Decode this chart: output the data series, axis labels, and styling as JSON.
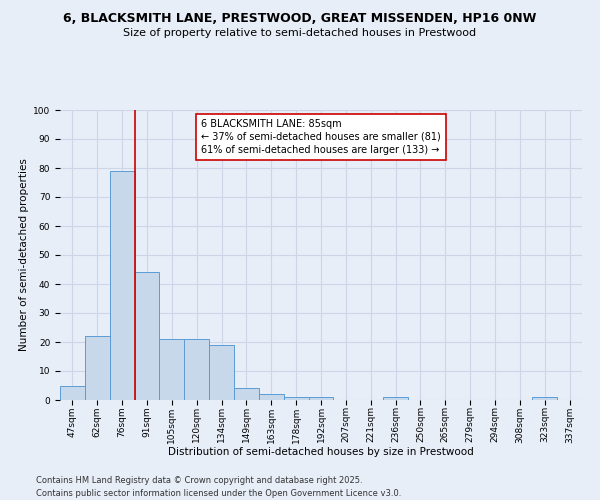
{
  "title": "6, BLACKSMITH LANE, PRESTWOOD, GREAT MISSENDEN, HP16 0NW",
  "subtitle": "Size of property relative to semi-detached houses in Prestwood",
  "xlabel": "Distribution of semi-detached houses by size in Prestwood",
  "ylabel": "Number of semi-detached properties",
  "categories": [
    "47sqm",
    "62sqm",
    "76sqm",
    "91sqm",
    "105sqm",
    "120sqm",
    "134sqm",
    "149sqm",
    "163sqm",
    "178sqm",
    "192sqm",
    "207sqm",
    "221sqm",
    "236sqm",
    "250sqm",
    "265sqm",
    "279sqm",
    "294sqm",
    "308sqm",
    "323sqm",
    "337sqm"
  ],
  "values": [
    5,
    22,
    79,
    44,
    21,
    21,
    19,
    4,
    2,
    1,
    1,
    0,
    0,
    1,
    0,
    0,
    0,
    0,
    0,
    1,
    0
  ],
  "bar_color": "#c8d8eb",
  "bar_edge_color": "#5b9bd5",
  "vline_x_index": 2.5,
  "vline_color": "#cc0000",
  "annotation_text": "6 BLACKSMITH LANE: 85sqm\n← 37% of semi-detached houses are smaller (81)\n61% of semi-detached houses are larger (133) →",
  "annotation_box_color": "#ffffff",
  "annotation_box_edge_color": "#cc0000",
  "ylim": [
    0,
    100
  ],
  "yticks": [
    0,
    10,
    20,
    30,
    40,
    50,
    60,
    70,
    80,
    90,
    100
  ],
  "grid_color": "#ccd6e6",
  "bg_color": "#e8eef8",
  "footer": "Contains HM Land Registry data © Crown copyright and database right 2025.\nContains public sector information licensed under the Open Government Licence v3.0.",
  "title_fontsize": 9,
  "subtitle_fontsize": 8,
  "axis_label_fontsize": 7.5,
  "tick_fontsize": 6.5,
  "annotation_fontsize": 7,
  "footer_fontsize": 6
}
